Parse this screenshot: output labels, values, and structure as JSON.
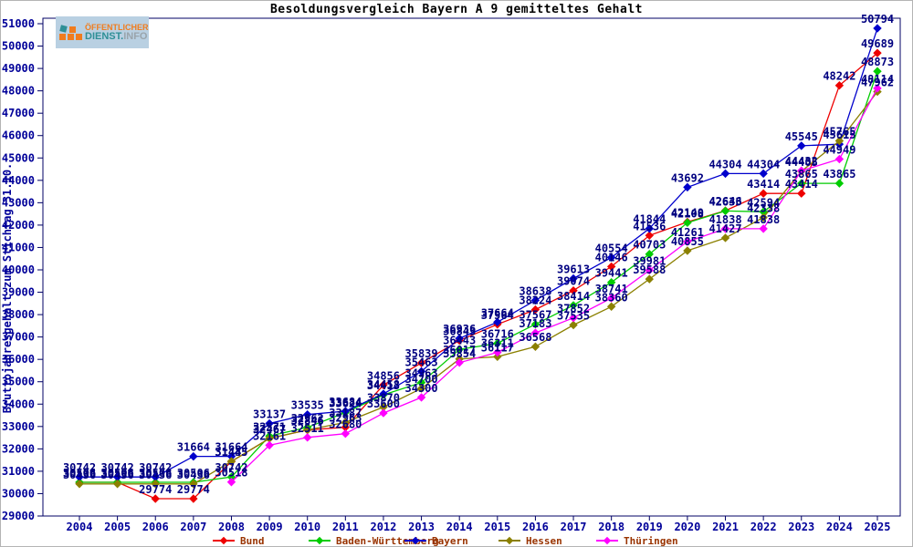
{
  "title": "Besoldungsvergleich Bayern A 9 gemitteltes Gehalt",
  "logo": {
    "line1": "ÖFFENTLICHER",
    "line2_teal": "DIENST.",
    "line2_gray": "INFO"
  },
  "y_axis_label": "Bruttojahresgehalt zum Stichtag 31.10.",
  "styles": {
    "axis_color": "#000066",
    "tick_text_color": "#000099",
    "point_label_color": "#000080",
    "legend_text_color": "#993300",
    "background": "#ffffff"
  },
  "chart_data": {
    "type": "line",
    "title": "Besoldungsvergleich Bayern A 9 gemitteltes Gehalt",
    "xlabel": "",
    "ylabel": "Bruttojahresgehalt zum Stichtag 31.10.",
    "x": [
      2004,
      2005,
      2006,
      2007,
      2008,
      2009,
      2010,
      2011,
      2012,
      2013,
      2014,
      2015,
      2016,
      2017,
      2018,
      2019,
      2020,
      2021,
      2022,
      2023,
      2024,
      2025
    ],
    "ylim": [
      29000,
      51000
    ],
    "ytick_step": 1000,
    "grid": false,
    "legend_position": "bottom",
    "marker": "diamond",
    "series": [
      {
        "name": "Bund",
        "color": "#ee0000",
        "values": [
          30506,
          30506,
          29774,
          29774,
          31435,
          32467,
          32846,
          32963,
          34856,
          35839,
          36843,
          37564,
          38224,
          39074,
          40146,
          41536,
          42140,
          42646,
          43414,
          43414,
          48242,
          49689
        ]
      },
      {
        "name": "Baden-Württemberg",
        "color": "#00cc00",
        "values": [
          30506,
          30506,
          30506,
          30506,
          30742,
          32571,
          32962,
          33624,
          34413,
          34963,
          36443,
          36716,
          37567,
          38414,
          39441,
          40703,
          42108,
          42633,
          42594,
          43865,
          43865,
          48873
        ]
      },
      {
        "name": "Bayern",
        "color": "#0000cc",
        "values": [
          30742,
          30742,
          30742,
          31664,
          31664,
          33137,
          33535,
          33684,
          34458,
          35463,
          36936,
          37664,
          38638,
          39613,
          40554,
          41844,
          43692,
          44304,
          44304,
          45545,
          45615,
          50794
        ]
      },
      {
        "name": "Hessen",
        "color": "#8b8000",
        "values": [
          30436,
          30436,
          30436,
          30436,
          31445,
          32467,
          32846,
          33187,
          33870,
          34700,
          36017,
          36117,
          36568,
          37535,
          38360,
          39588,
          40855,
          41427,
          42338,
          44405,
          45765,
          47962
        ]
      },
      {
        "name": "Thüringen",
        "color": "#ff00ff",
        "values": [
          null,
          null,
          null,
          null,
          30518,
          32161,
          32511,
          32680,
          33600,
          34300,
          35854,
          36311,
          37183,
          37852,
          38741,
          39981,
          41261,
          41838,
          41838,
          44432,
          44949,
          48114
        ]
      }
    ]
  },
  "legend_items": [
    "Bund",
    "Baden-Württemberg",
    "Bayern",
    "Hessen",
    "Thüringen"
  ]
}
